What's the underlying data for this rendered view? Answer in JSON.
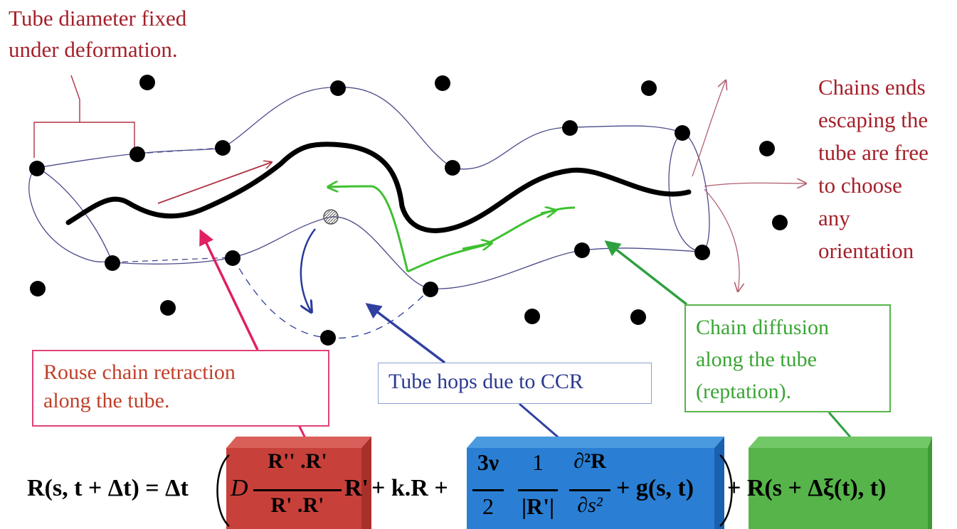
{
  "annotations": {
    "tube_diameter": [
      "Tube diameter fixed",
      "under deformation."
    ],
    "chain_ends": [
      "Chains ends",
      "escaping the",
      "tube are free",
      "to choose",
      "any",
      "orientation"
    ],
    "rouse": [
      "Rouse chain retraction",
      "along the tube."
    ],
    "ccr": "Tube hops due to CCR",
    "reptation": [
      "Chain diffusion",
      "along the tube",
      "(reptation)."
    ]
  },
  "equation": {
    "lhs": "R(s, t + Δt) = Δt",
    "term1_coef": "D",
    "term1_num": "R'' .R'",
    "term1_den": "R' .R'",
    "term1_tail": "R'",
    "term2": "+ k.R +",
    "term3_num": "3ν",
    "term3_den": "2",
    "term3b_num": "1",
    "term3b_den": "|R'|",
    "term3c_num": "∂²R",
    "term3c_den": "∂s²",
    "term4": "+ g(s, t)",
    "term5": "+ R(s + Δξ(t), t)"
  },
  "colors": {
    "annotation_text": "#a4202a",
    "rouse_border": "#e0407a",
    "rouse_arrow": "#e02060",
    "ccr_text": "#2b3a8f",
    "ccr_arrow": "#3040a0",
    "reptation_text": "#3aa535",
    "reptation_arrow": "#2fa040",
    "red_block": "#c8403a",
    "blue_block": "#2a7fd4",
    "green_block": "#56b44a"
  }
}
